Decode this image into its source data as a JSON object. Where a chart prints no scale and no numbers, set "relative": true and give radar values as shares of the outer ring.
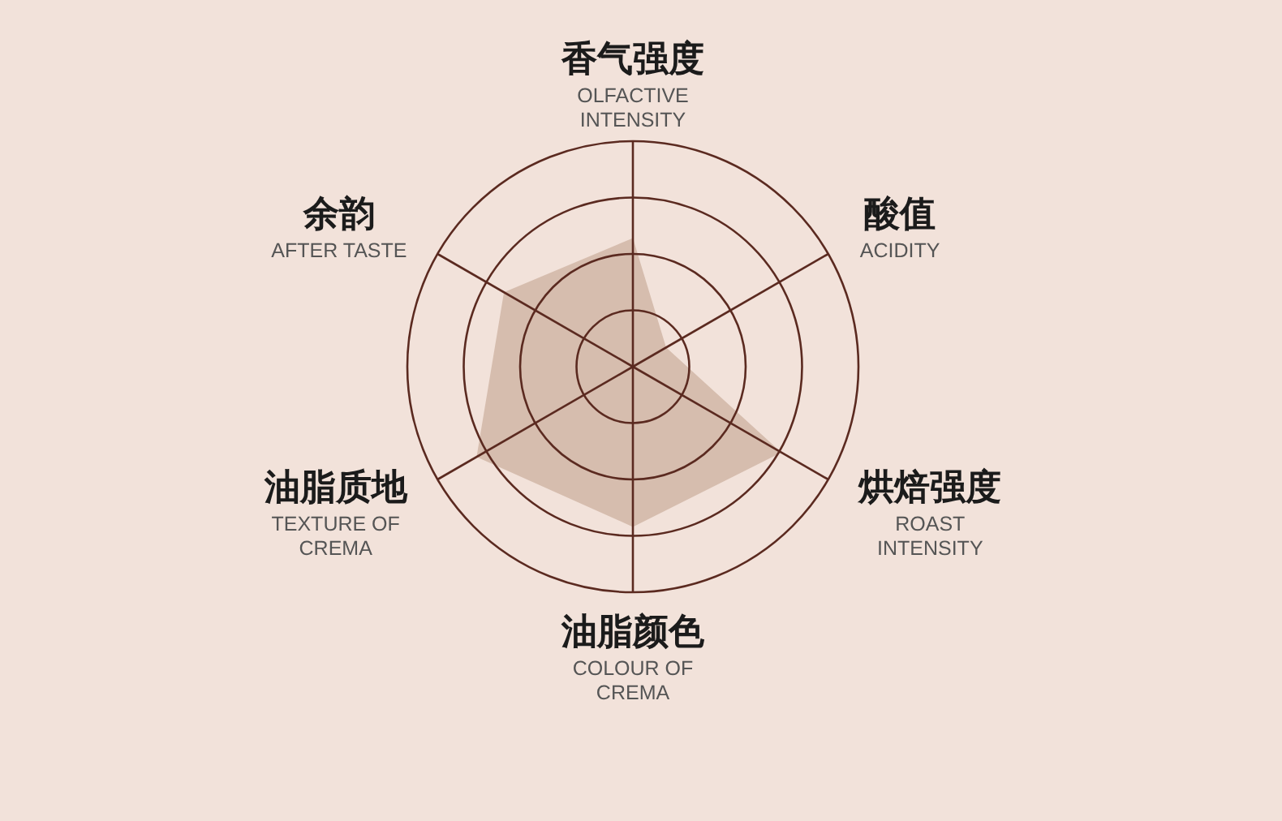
{
  "chart_data": {
    "type": "radar",
    "categories": [
      "香气强度\nOLFACTIVE\nINTENSITY",
      "酸值\nACIDITY",
      "烘焙强度\nROAST\nINTENSITY",
      "油脂颜色\nCOLOUR OF\nCREMA",
      "油脂质地\nTEXTURE OF\nCREMA",
      "余韵\nAFTER TASTE"
    ],
    "series": [
      {
        "color": "#d6bdae",
        "values": [
          0.57,
          0.17,
          0.76,
          0.71,
          0.8,
          0.66
        ]
      }
    ],
    "relative": true,
    "grid": true
  }
}
